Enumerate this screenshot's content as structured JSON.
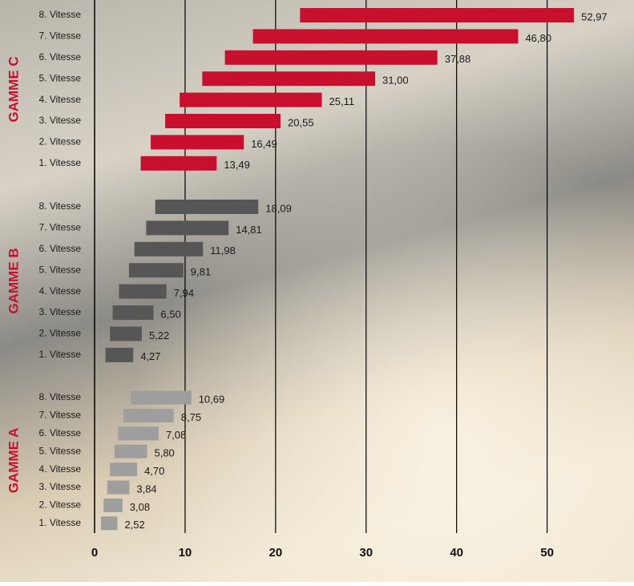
{
  "chart_data": {
    "type": "floating-bar",
    "orientation": "horizontal",
    "categories": [
      "1. Vitesse",
      "2. Vitesse",
      "3. Vitesse",
      "4. Vitesse",
      "5. Vitesse",
      "6. Vitesse",
      "7. Vitesse",
      "8. Vitesse"
    ],
    "series": [
      {
        "name": "GAMME A",
        "color": "#9e9e9e",
        "starts": [
          0.7,
          1.0,
          1.4,
          1.7,
          2.2,
          2.6,
          3.2,
          4.0
        ],
        "values": [
          2.52,
          3.08,
          3.84,
          4.7,
          5.8,
          7.08,
          8.75,
          10.69
        ],
        "value_labels": [
          "2,52",
          "3,08",
          "3,84",
          "4,70",
          "5,80",
          "7,08",
          "8,75",
          "10,69"
        ]
      },
      {
        "name": "GAMME B",
        "color": "#565656",
        "starts": [
          1.2,
          1.7,
          2.0,
          2.7,
          3.8,
          4.4,
          5.7,
          6.7
        ],
        "values": [
          4.27,
          5.22,
          6.5,
          7.94,
          9.81,
          11.98,
          14.81,
          18.09
        ],
        "value_labels": [
          "4,27",
          "5,22",
          "6,50",
          "7,94",
          "9,81",
          "11,98",
          "14,81",
          "18,09"
        ]
      },
      {
        "name": "GAMME C",
        "color": "#c8102e",
        "starts": [
          5.1,
          6.2,
          7.8,
          9.4,
          11.9,
          14.4,
          17.5,
          22.7
        ],
        "values": [
          13.49,
          16.49,
          20.55,
          25.11,
          31.0,
          37.88,
          46.8,
          52.97
        ],
        "value_labels": [
          "13,49",
          "16,49",
          "20,55",
          "25,11",
          "31,00",
          "37,88",
          "46,80",
          "52,97"
        ]
      }
    ],
    "xlim": [
      0,
      59.6
    ],
    "xticks": [
      0,
      10,
      20,
      30,
      40,
      50
    ],
    "grid": true
  }
}
